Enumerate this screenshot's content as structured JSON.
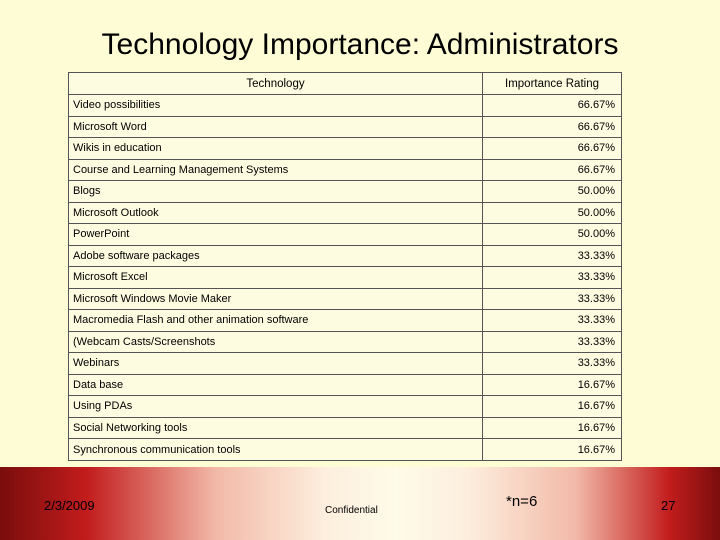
{
  "title": "Technology Importance: Administrators",
  "table": {
    "headers": [
      "Technology",
      "Importance Rating"
    ],
    "rows": [
      {
        "technology": "Video possibilities",
        "rating": "66.67%"
      },
      {
        "technology": "Microsoft Word",
        "rating": "66.67%"
      },
      {
        "technology": "Wikis in education",
        "rating": "66.67%"
      },
      {
        "technology": "Course and Learning Management Systems",
        "rating": "66.67%"
      },
      {
        "technology": "Blogs",
        "rating": "50.00%"
      },
      {
        "technology": "Microsoft Outlook",
        "rating": "50.00%"
      },
      {
        "technology": "PowerPoint",
        "rating": "50.00%"
      },
      {
        "technology": "Adobe software packages",
        "rating": "33.33%"
      },
      {
        "technology": "Microsoft Excel",
        "rating": "33.33%"
      },
      {
        "technology": "Microsoft Windows Movie Maker",
        "rating": "33.33%"
      },
      {
        "technology": "Macromedia Flash and other animation software",
        "rating": "33.33%"
      },
      {
        "technology": "(Webcam Casts/Screenshots",
        "rating": "33.33%"
      },
      {
        "technology": "Webinars",
        "rating": "33.33%"
      },
      {
        "technology": "Data base",
        "rating": "16.67%"
      },
      {
        "technology": "Using PDAs",
        "rating": "16.67%"
      },
      {
        "technology": "Social Networking tools",
        "rating": "16.67%"
      },
      {
        "technology": "Synchronous communication tools",
        "rating": "16.67%"
      }
    ]
  },
  "footer": {
    "date": "2/3/2009",
    "confidential": "Confidential",
    "note": "*n=6",
    "page_number": "27"
  }
}
